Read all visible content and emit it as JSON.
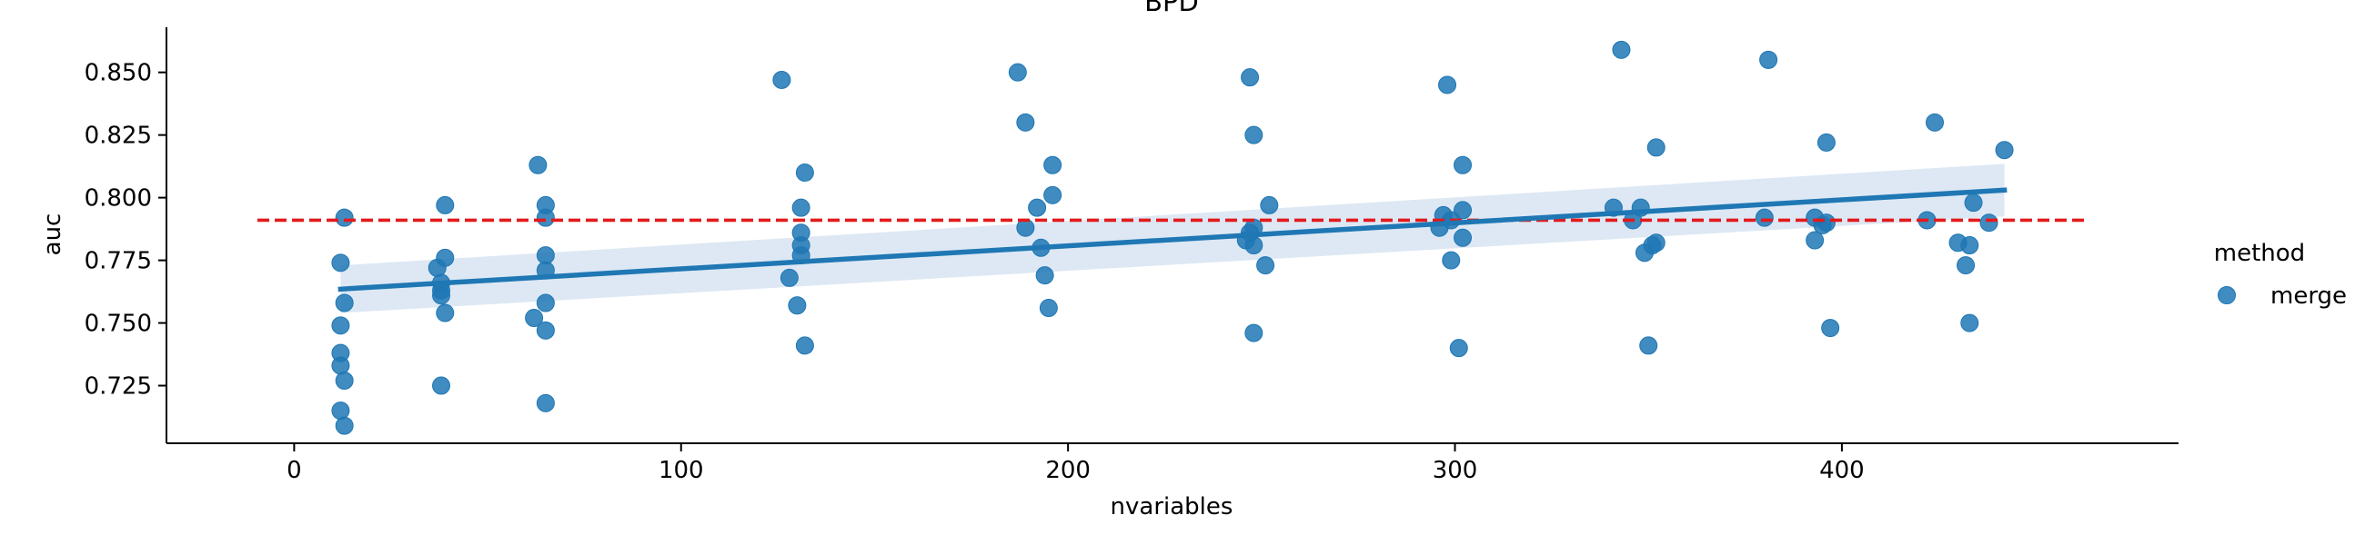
{
  "chart_data": {
    "type": "scatter",
    "title": "BPD",
    "xlabel": "nvariables",
    "ylabel": "auc",
    "xlim": [
      -33,
      487
    ],
    "ylim": [
      0.702,
      0.868
    ],
    "xticks": [
      0,
      100,
      200,
      300,
      400
    ],
    "yticks": [
      0.725,
      0.75,
      0.775,
      0.8,
      0.825,
      0.85
    ],
    "xtick_labels": [
      "0",
      "100",
      "200",
      "300",
      "400"
    ],
    "ytick_labels": [
      "0.725",
      "0.750",
      "0.775",
      "0.800",
      "0.825",
      "0.850"
    ],
    "grid": false,
    "legend": {
      "title": "method",
      "entries": [
        "merge"
      ],
      "placement": "right"
    },
    "series": [
      {
        "name": "merge",
        "color": "#1f77b4",
        "points": [
          [
            13,
            0.792
          ],
          [
            12,
            0.774
          ],
          [
            13,
            0.758
          ],
          [
            12,
            0.749
          ],
          [
            12,
            0.738
          ],
          [
            12,
            0.733
          ],
          [
            13,
            0.727
          ],
          [
            12,
            0.715
          ],
          [
            13,
            0.709
          ],
          [
            39,
            0.797
          ],
          [
            39,
            0.776
          ],
          [
            37,
            0.772
          ],
          [
            38,
            0.766
          ],
          [
            38,
            0.763
          ],
          [
            38,
            0.761
          ],
          [
            39,
            0.754
          ],
          [
            38,
            0.725
          ],
          [
            63,
            0.813
          ],
          [
            65,
            0.797
          ],
          [
            65,
            0.792
          ],
          [
            65,
            0.777
          ],
          [
            65,
            0.771
          ],
          [
            65,
            0.758
          ],
          [
            62,
            0.752
          ],
          [
            65,
            0.747
          ],
          [
            65,
            0.718
          ],
          [
            126,
            0.847
          ],
          [
            132,
            0.81
          ],
          [
            131,
            0.796
          ],
          [
            131,
            0.786
          ],
          [
            131,
            0.781
          ],
          [
            131,
            0.777
          ],
          [
            128,
            0.768
          ],
          [
            130,
            0.757
          ],
          [
            132,
            0.741
          ],
          [
            187,
            0.85
          ],
          [
            189,
            0.83
          ],
          [
            196,
            0.813
          ],
          [
            196,
            0.801
          ],
          [
            192,
            0.796
          ],
          [
            189,
            0.788
          ],
          [
            193,
            0.78
          ],
          [
            194,
            0.769
          ],
          [
            195,
            0.756
          ],
          [
            247,
            0.848
          ],
          [
            248,
            0.825
          ],
          [
            252,
            0.797
          ],
          [
            248,
            0.788
          ],
          [
            247,
            0.786
          ],
          [
            246,
            0.783
          ],
          [
            248,
            0.781
          ],
          [
            251,
            0.773
          ],
          [
            248,
            0.746
          ],
          [
            298,
            0.845
          ],
          [
            302,
            0.813
          ],
          [
            302,
            0.795
          ],
          [
            297,
            0.793
          ],
          [
            296,
            0.788
          ],
          [
            299,
            0.791
          ],
          [
            302,
            0.784
          ],
          [
            299,
            0.775
          ],
          [
            301,
            0.74
          ],
          [
            343,
            0.859
          ],
          [
            352,
            0.82
          ],
          [
            341,
            0.796
          ],
          [
            348,
            0.796
          ],
          [
            346,
            0.791
          ],
          [
            352,
            0.782
          ],
          [
            351,
            0.781
          ],
          [
            349,
            0.778
          ],
          [
            350,
            0.741
          ],
          [
            381,
            0.855
          ],
          [
            396,
            0.822
          ],
          [
            380,
            0.792
          ],
          [
            393,
            0.792
          ],
          [
            395,
            0.789
          ],
          [
            396,
            0.79
          ],
          [
            393,
            0.783
          ],
          [
            397,
            0.748
          ],
          [
            424,
            0.83
          ],
          [
            442,
            0.819
          ],
          [
            434,
            0.798
          ],
          [
            422,
            0.791
          ],
          [
            438,
            0.79
          ],
          [
            430,
            0.782
          ],
          [
            433,
            0.781
          ],
          [
            432,
            0.773
          ],
          [
            433,
            0.75
          ]
        ]
      }
    ],
    "regression": {
      "x_range": [
        12,
        442
      ],
      "y_range": [
        0.7635,
        0.803
      ],
      "ci_lower": [
        0.754,
        0.7925
      ],
      "ci_upper": [
        0.773,
        0.8135
      ],
      "color": "#1f77b4",
      "band_color": "#c6d9ec"
    },
    "reference_line": {
      "y": 0.791,
      "color": "#e31a1c",
      "style": "dashed"
    }
  }
}
